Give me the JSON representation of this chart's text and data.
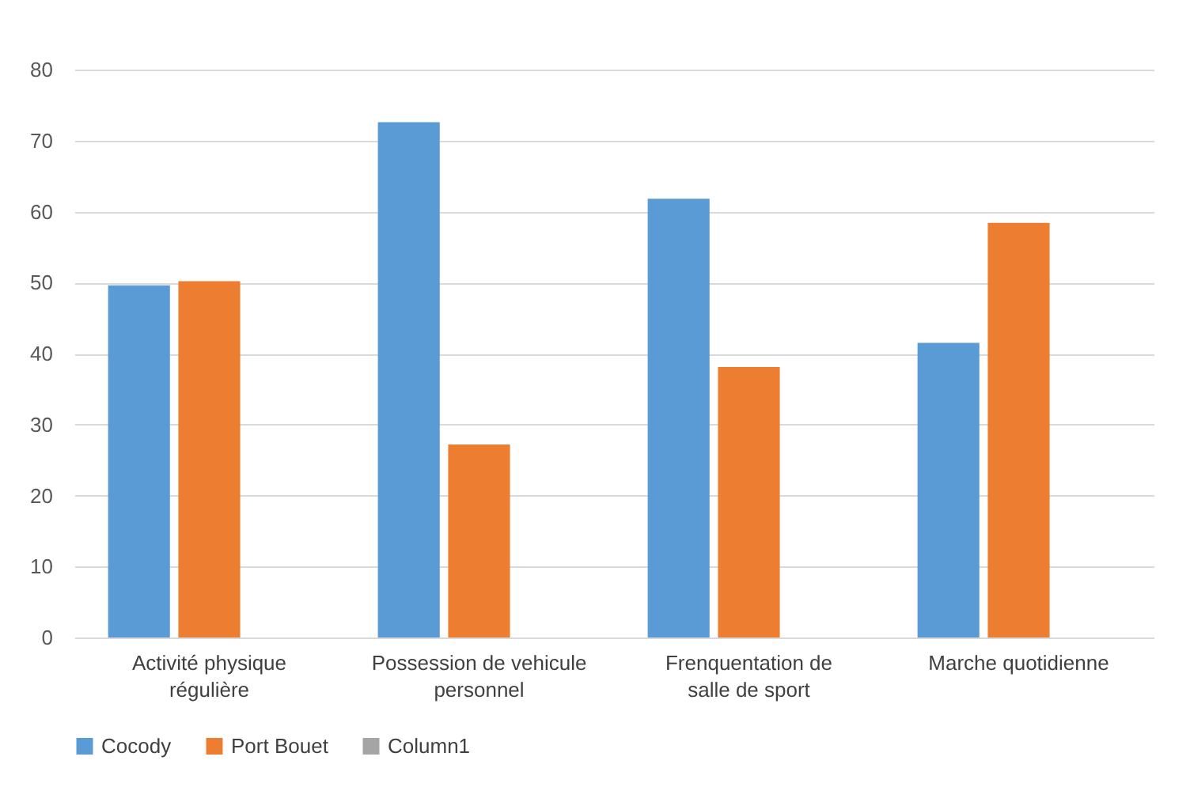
{
  "chart_data": {
    "type": "bar",
    "categories": [
      "Activité physique régulière",
      "Possession de vehicule personnel",
      "Frenquentation de salle de sport",
      "Marche quotidienne"
    ],
    "series": [
      {
        "name": "Cocody",
        "color": "#5b9bd5",
        "values": [
          49.6,
          72.6,
          61.8,
          41.5
        ]
      },
      {
        "name": "Port Bouet",
        "color": "#ed7d31",
        "values": [
          50.2,
          27.2,
          38.1,
          58.4
        ]
      },
      {
        "name": "Column1",
        "color": "#a5a5a5",
        "values": [
          null,
          null,
          null,
          null
        ]
      }
    ],
    "ylim": [
      0,
      80
    ],
    "yticks": [
      0,
      10,
      20,
      30,
      40,
      50,
      60,
      70,
      80
    ],
    "grid": "y",
    "legend": "bottom"
  }
}
